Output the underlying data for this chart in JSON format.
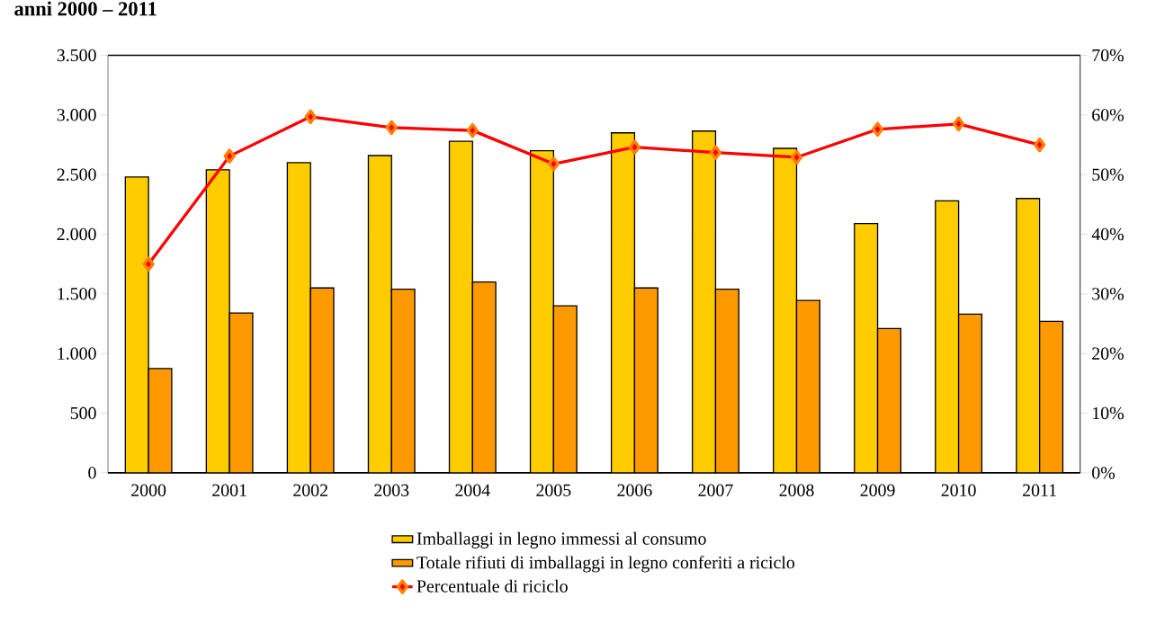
{
  "chart_data": {
    "type": "bar",
    "title": "anni 2000 – 2011",
    "categories": [
      "2000",
      "2001",
      "2002",
      "2003",
      "2004",
      "2005",
      "2006",
      "2007",
      "2008",
      "2009",
      "2010",
      "2011"
    ],
    "series": [
      {
        "name": "Imballaggi in legno immessi al consumo",
        "color": "#ffcc00",
        "values": [
          2480,
          2540,
          2600,
          2660,
          2780,
          2700,
          2850,
          2865,
          2720,
          2090,
          2280,
          2300
        ]
      },
      {
        "name": "Totale rifiuti di imballaggi in legno conferiti a riciclo",
        "color": "#ff9900",
        "values": [
          875,
          1340,
          1550,
          1540,
          1600,
          1400,
          1550,
          1540,
          1445,
          1210,
          1330,
          1270
        ]
      },
      {
        "name": "Percentuale di riciclo",
        "type": "line",
        "axis": "y2",
        "color": "#ff0000",
        "marker": "diamond",
        "line_style": "solid",
        "values": [
          35.0,
          53.1,
          59.7,
          57.9,
          57.4,
          51.8,
          54.6,
          53.7,
          52.9,
          57.6,
          58.5,
          55.0
        ]
      }
    ],
    "ylim": [
      0,
      3500
    ],
    "yticks": [
      0,
      500,
      {
        "value": 1000,
        "label": "1.000"
      },
      {
        "value": 1500,
        "label": "1.500"
      },
      {
        "value": 2000,
        "label": "2.000"
      },
      {
        "value": 2500,
        "label": "2.500"
      },
      {
        "value": 3000,
        "label": "3.000"
      },
      {
        "value": 3500,
        "label": "3.500"
      }
    ],
    "y2lim": [
      0,
      70
    ],
    "y2ticks": [
      {
        "value": 0,
        "label": "0%"
      },
      {
        "value": 10,
        "label": "10%"
      },
      {
        "value": 20,
        "label": "20%"
      },
      {
        "value": 30,
        "label": "30%"
      },
      {
        "value": 40,
        "label": "40%"
      },
      {
        "value": 50,
        "label": "50%"
      },
      {
        "value": 60,
        "label": "60%"
      },
      {
        "value": 70,
        "label": "70%"
      }
    ],
    "grid": false,
    "legend": "bottom"
  }
}
